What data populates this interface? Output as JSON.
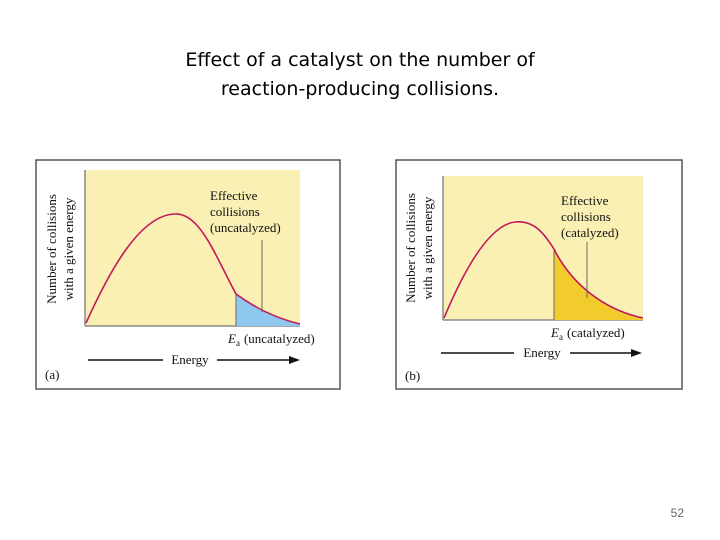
{
  "slide": {
    "title_line1": "Effect of a catalyst on the number of",
    "title_line2": "reaction-producing collisions.",
    "page_number": "52"
  },
  "colors": {
    "plot_background": "#faf0b4",
    "curve": "#c2185b",
    "uncatalyzed_fill": "#8ec8ef",
    "catalyzed_fill": "#f2cb2c"
  },
  "panel_a": {
    "ylabel_line1": "Number of collisions",
    "ylabel_line2": "with a given energy",
    "annotation_line1": "Effective",
    "annotation_line2": "collisions",
    "annotation_line3": "(uncatalyzed)",
    "ea_symbol": "E",
    "ea_subscript": "a",
    "ea_label": "(uncatalyzed)",
    "xlabel": "Energy",
    "panel_label": "(a)"
  },
  "panel_b": {
    "ylabel_line1": "Number of collisions",
    "ylabel_line2": "with a given energy",
    "annotation_line1": "Effective",
    "annotation_line2": "collisions",
    "annotation_line3": "(catalyzed)",
    "ea_symbol": "E",
    "ea_subscript": "a",
    "ea_label": "(catalyzed)",
    "xlabel": "Energy",
    "panel_label": "(b)"
  }
}
